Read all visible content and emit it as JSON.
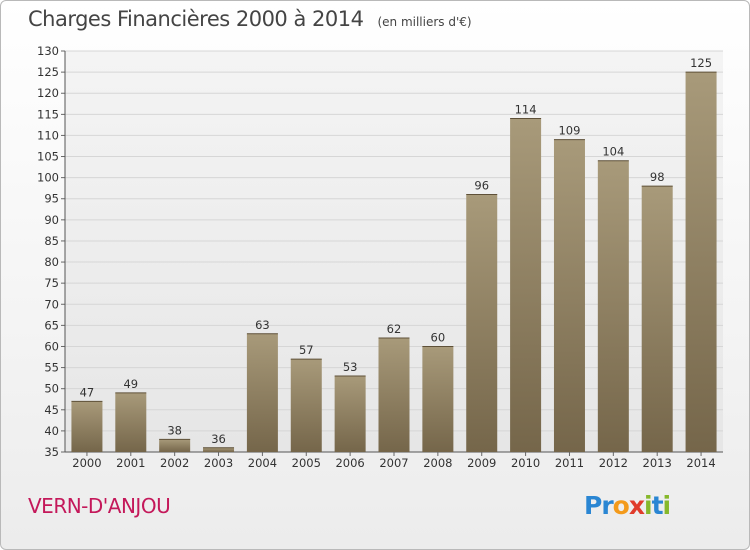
{
  "header": {
    "title": "Charges Financières 2000 à 2014",
    "unit": "(en milliers d'€)"
  },
  "footer": {
    "place": "VERN-D'ANJOU",
    "logo_text": "Proxiti"
  },
  "colors": {
    "bar_light": "#a89a7a",
    "bar_dark": "#7a6a4e",
    "place": "#c4185a"
  },
  "chart_data": {
    "type": "bar",
    "title": "Charges Financières 2000 à 2014",
    "subtitle": "(en milliers d'€)",
    "categories": [
      "2000",
      "2001",
      "2002",
      "2003",
      "2004",
      "2005",
      "2006",
      "2007",
      "2008",
      "2009",
      "2010",
      "2011",
      "2012",
      "2013",
      "2014"
    ],
    "values": [
      47,
      49,
      38,
      36,
      63,
      57,
      53,
      62,
      60,
      96,
      114,
      109,
      104,
      98,
      125
    ],
    "ylim": [
      35,
      130
    ],
    "yticks": [
      35,
      40,
      45,
      50,
      55,
      60,
      65,
      70,
      75,
      80,
      85,
      90,
      95,
      100,
      105,
      110,
      115,
      120,
      125,
      130
    ],
    "grid": true,
    "xlabel": "",
    "ylabel": ""
  }
}
